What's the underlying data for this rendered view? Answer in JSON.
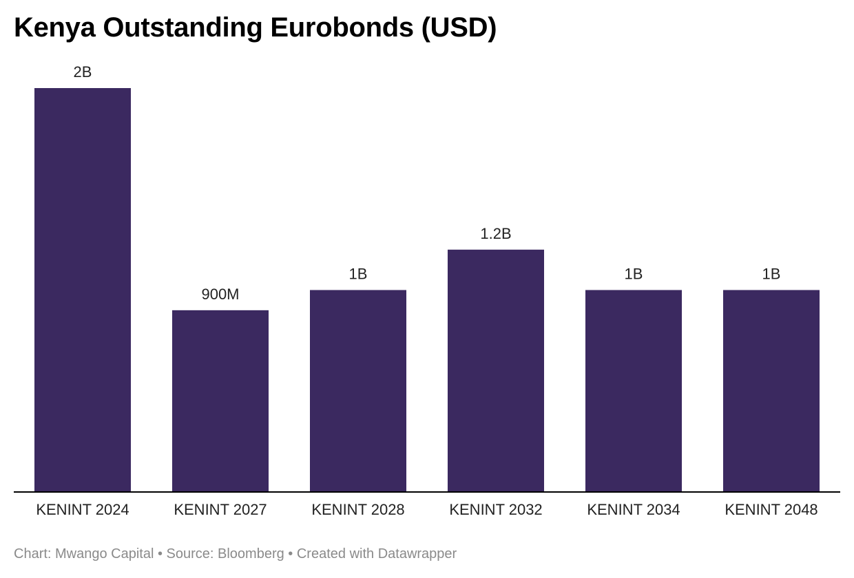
{
  "title": "Kenya Outstanding Eurobonds (USD)",
  "footer": "Chart: Mwango Capital • Source: Bloomberg • Created with Datawrapper",
  "colors": {
    "bar": "#3b2960",
    "axis": "#000000",
    "label": "#222222"
  },
  "chart_data": {
    "type": "bar",
    "title": "Kenya Outstanding Eurobonds (USD)",
    "categories": [
      "KENINT 2024",
      "KENINT 2027",
      "KENINT 2028",
      "KENINT 2032",
      "KENINT 2034",
      "KENINT 2048"
    ],
    "values": [
      2000000000,
      900000000,
      1000000000,
      1200000000,
      1000000000,
      1000000000
    ],
    "value_labels": [
      "2B",
      "900M",
      "1B",
      "1.2B",
      "1B",
      "1B"
    ],
    "xlabel": "",
    "ylabel": "",
    "ylim": [
      0,
      2000000000
    ],
    "grid": false,
    "legend": "none"
  }
}
